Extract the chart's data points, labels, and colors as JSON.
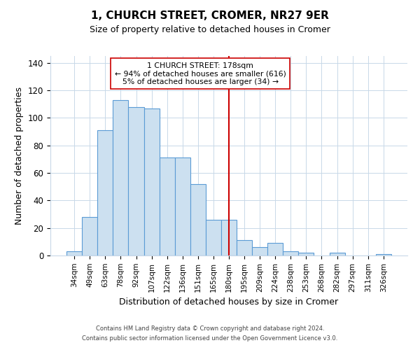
{
  "title": "1, CHURCH STREET, CROMER, NR27 9ER",
  "subtitle": "Size of property relative to detached houses in Cromer",
  "xlabel": "Distribution of detached houses by size in Cromer",
  "ylabel": "Number of detached properties",
  "bar_labels": [
    "34sqm",
    "49sqm",
    "63sqm",
    "78sqm",
    "92sqm",
    "107sqm",
    "122sqm",
    "136sqm",
    "151sqm",
    "165sqm",
    "180sqm",
    "195sqm",
    "209sqm",
    "224sqm",
    "238sqm",
    "253sqm",
    "268sqm",
    "282sqm",
    "297sqm",
    "311sqm",
    "326sqm"
  ],
  "bar_values": [
    3,
    28,
    91,
    113,
    108,
    107,
    71,
    71,
    52,
    26,
    26,
    11,
    6,
    9,
    3,
    2,
    0,
    2,
    0,
    0,
    1
  ],
  "bar_color": "#cce0f0",
  "bar_edge_color": "#5b9bd5",
  "vline_x": 10,
  "vline_color": "#cc0000",
  "annotation_text": "1 CHURCH STREET: 178sqm\n← 94% of detached houses are smaller (616)\n5% of detached houses are larger (34) →",
  "ylim": [
    0,
    145
  ],
  "yticks": [
    0,
    20,
    40,
    60,
    80,
    100,
    120,
    140
  ],
  "footer_line1": "Contains HM Land Registry data © Crown copyright and database right 2024.",
  "footer_line2": "Contains public sector information licensed under the Open Government Licence v3.0.",
  "background_color": "#ffffff",
  "grid_color": "#c8d8e8"
}
